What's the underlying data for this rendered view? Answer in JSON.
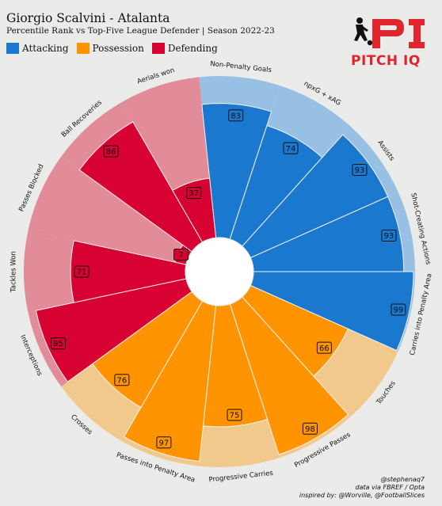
{
  "header": {
    "title": "Giorgio Scalvini - Atalanta",
    "subtitle": "Percentile Rank vs Top-Five League Defender | Season 2022-23"
  },
  "legend": [
    {
      "label": "Attacking",
      "color": "#1a78cf"
    },
    {
      "label": "Possession",
      "color": "#ff9300"
    },
    {
      "label": "Defending",
      "color": "#d70232"
    }
  ],
  "logo": {
    "text": "PITCH IQ",
    "mark": "PI",
    "icon": "footballer-icon",
    "color": "#e0252f"
  },
  "credits": {
    "line1": "@stephenaq7",
    "line2": "data via FBREF / Opta",
    "line3": "inspired by: @Worville, @FootballSlices"
  },
  "chart_data": {
    "type": "pizza",
    "range": [
      0,
      100
    ],
    "categories": [
      {
        "name": "Attacking",
        "slice_color": "#1a78cf",
        "background_color": "#98bfe4"
      },
      {
        "name": "Possession",
        "slice_color": "#ff9300",
        "background_color": "#f2c98c"
      },
      {
        "name": "Defending",
        "slice_color": "#d70232",
        "background_color": "#e28b99"
      }
    ],
    "params": [
      {
        "label": "Non-Penalty Goals",
        "value": 83,
        "group": "Attacking"
      },
      {
        "label": "npxG + xAG",
        "value": 74,
        "group": "Attacking"
      },
      {
        "label": "Assists",
        "value": 93,
        "group": "Attacking"
      },
      {
        "label": "Shot-Creating Actions",
        "value": 93,
        "group": "Attacking"
      },
      {
        "label": "Carries into Penalty Area",
        "value": 99,
        "group": "Attacking"
      },
      {
        "label": "Touches",
        "value": 66,
        "group": "Possession"
      },
      {
        "label": "Progressive Passes",
        "value": 98,
        "group": "Possession"
      },
      {
        "label": "Progressive Carries",
        "value": 75,
        "group": "Possession"
      },
      {
        "label": "Passes into Penalty Area",
        "value": 97,
        "group": "Possession"
      },
      {
        "label": "Crosses",
        "value": 76,
        "group": "Possession"
      },
      {
        "label": "Interceptions",
        "value": 95,
        "group": "Defending"
      },
      {
        "label": "Tackles Won",
        "value": 71,
        "group": "Defending"
      },
      {
        "label": "Passes Blocked",
        "value": 7,
        "group": "Defending"
      },
      {
        "label": "Ball Recoveries",
        "value": 86,
        "group": "Defending"
      },
      {
        "label": "Aerials won",
        "value": 37,
        "group": "Defending"
      }
    ]
  }
}
